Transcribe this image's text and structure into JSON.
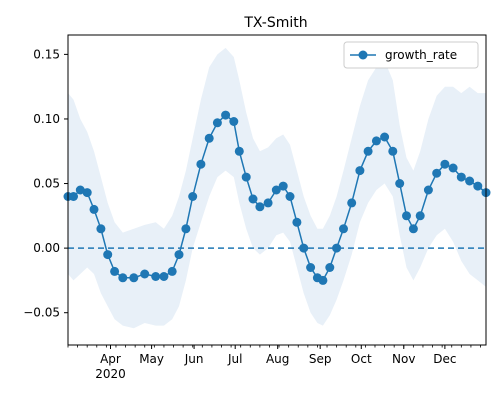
{
  "chart_data": {
    "type": "line",
    "title": "TX-Smith",
    "xlabel": "",
    "ylabel": "",
    "x_range": [
      "2020-03-01",
      "2020-12-31"
    ],
    "ylim": [
      -0.075,
      0.165
    ],
    "y_ticks": [
      -0.05,
      0.0,
      0.05,
      0.1,
      0.15
    ],
    "y_tick_labels": [
      "−0.05",
      "0.00",
      "0.05",
      "0.10",
      "0.15"
    ],
    "x_ticks": [
      {
        "date": "2020-04-01",
        "label": "Apr",
        "sublabel": "2020"
      },
      {
        "date": "2020-05-01",
        "label": "May",
        "sublabel": ""
      },
      {
        "date": "2020-06-01",
        "label": "Jun",
        "sublabel": ""
      },
      {
        "date": "2020-07-01",
        "label": "Jul",
        "sublabel": ""
      },
      {
        "date": "2020-08-01",
        "label": "Aug",
        "sublabel": ""
      },
      {
        "date": "2020-09-01",
        "label": "Sep",
        "sublabel": ""
      },
      {
        "date": "2020-10-01",
        "label": "Oct",
        "sublabel": ""
      },
      {
        "date": "2020-11-01",
        "label": "Nov",
        "sublabel": ""
      },
      {
        "date": "2020-12-01",
        "label": "Dec",
        "sublabel": ""
      }
    ],
    "minor_ticks": "weekly",
    "reference_line": {
      "y": 0.0,
      "style": "dashed",
      "color": "#1f77b4"
    },
    "legend": {
      "position": "top-right",
      "entries": [
        "growth_rate"
      ]
    },
    "grid": false,
    "series": [
      {
        "name": "growth_rate",
        "color": "#1f77b4",
        "marker": "circle",
        "band_color": "#e8f0f8",
        "points": [
          {
            "x": "2020-03-01",
            "y": 0.04,
            "lo": -0.02,
            "hi": 0.12
          },
          {
            "x": "2020-03-05",
            "y": 0.04,
            "lo": -0.025,
            "hi": 0.115
          },
          {
            "x": "2020-03-10",
            "y": 0.045,
            "lo": -0.02,
            "hi": 0.1
          },
          {
            "x": "2020-03-15",
            "y": 0.043,
            "lo": -0.015,
            "hi": 0.09
          },
          {
            "x": "2020-03-20",
            "y": 0.03,
            "lo": -0.02,
            "hi": 0.075
          },
          {
            "x": "2020-03-25",
            "y": 0.015,
            "lo": -0.035,
            "hi": 0.055
          },
          {
            "x": "2020-03-30",
            "y": -0.005,
            "lo": -0.045,
            "hi": 0.035
          },
          {
            "x": "2020-04-04",
            "y": -0.018,
            "lo": -0.055,
            "hi": 0.02
          },
          {
            "x": "2020-04-10",
            "y": -0.023,
            "lo": -0.06,
            "hi": 0.012
          },
          {
            "x": "2020-04-18",
            "y": -0.023,
            "lo": -0.062,
            "hi": 0.015
          },
          {
            "x": "2020-04-26",
            "y": -0.02,
            "lo": -0.058,
            "hi": 0.018
          },
          {
            "x": "2020-05-04",
            "y": -0.022,
            "lo": -0.06,
            "hi": 0.02
          },
          {
            "x": "2020-05-10",
            "y": -0.022,
            "lo": -0.06,
            "hi": 0.015
          },
          {
            "x": "2020-05-16",
            "y": -0.018,
            "lo": -0.055,
            "hi": 0.025
          },
          {
            "x": "2020-05-21",
            "y": -0.005,
            "lo": -0.045,
            "hi": 0.04
          },
          {
            "x": "2020-05-26",
            "y": 0.015,
            "lo": -0.025,
            "hi": 0.06
          },
          {
            "x": "2020-05-31",
            "y": 0.04,
            "lo": 0.0,
            "hi": 0.085
          },
          {
            "x": "2020-06-06",
            "y": 0.065,
            "lo": 0.02,
            "hi": 0.115
          },
          {
            "x": "2020-06-12",
            "y": 0.085,
            "lo": 0.04,
            "hi": 0.14
          },
          {
            "x": "2020-06-18",
            "y": 0.097,
            "lo": 0.055,
            "hi": 0.15
          },
          {
            "x": "2020-06-24",
            "y": 0.103,
            "lo": 0.06,
            "hi": 0.155
          },
          {
            "x": "2020-06-30",
            "y": 0.098,
            "lo": 0.055,
            "hi": 0.148
          },
          {
            "x": "2020-07-04",
            "y": 0.075,
            "lo": 0.035,
            "hi": 0.13
          },
          {
            "x": "2020-07-09",
            "y": 0.055,
            "lo": 0.015,
            "hi": 0.105
          },
          {
            "x": "2020-07-14",
            "y": 0.038,
            "lo": 0.0,
            "hi": 0.085
          },
          {
            "x": "2020-07-19",
            "y": 0.032,
            "lo": -0.005,
            "hi": 0.075
          },
          {
            "x": "2020-07-25",
            "y": 0.035,
            "lo": 0.0,
            "hi": 0.078
          },
          {
            "x": "2020-07-31",
            "y": 0.045,
            "lo": 0.01,
            "hi": 0.085
          },
          {
            "x": "2020-08-05",
            "y": 0.048,
            "lo": 0.012,
            "hi": 0.088
          },
          {
            "x": "2020-08-10",
            "y": 0.04,
            "lo": 0.005,
            "hi": 0.08
          },
          {
            "x": "2020-08-15",
            "y": 0.02,
            "lo": -0.015,
            "hi": 0.06
          },
          {
            "x": "2020-08-20",
            "y": 0.0,
            "lo": -0.035,
            "hi": 0.04
          },
          {
            "x": "2020-08-25",
            "y": -0.015,
            "lo": -0.05,
            "hi": 0.025
          },
          {
            "x": "2020-08-30",
            "y": -0.023,
            "lo": -0.058,
            "hi": 0.015
          },
          {
            "x": "2020-09-03",
            "y": -0.025,
            "lo": -0.06,
            "hi": 0.015
          },
          {
            "x": "2020-09-08",
            "y": -0.015,
            "lo": -0.052,
            "hi": 0.025
          },
          {
            "x": "2020-09-13",
            "y": 0.0,
            "lo": -0.04,
            "hi": 0.04
          },
          {
            "x": "2020-09-18",
            "y": 0.015,
            "lo": -0.025,
            "hi": 0.06
          },
          {
            "x": "2020-09-24",
            "y": 0.035,
            "lo": -0.005,
            "hi": 0.085
          },
          {
            "x": "2020-09-30",
            "y": 0.06,
            "lo": 0.02,
            "hi": 0.11
          },
          {
            "x": "2020-10-06",
            "y": 0.075,
            "lo": 0.035,
            "hi": 0.13
          },
          {
            "x": "2020-10-12",
            "y": 0.083,
            "lo": 0.045,
            "hi": 0.14
          },
          {
            "x": "2020-10-18",
            "y": 0.086,
            "lo": 0.05,
            "hi": 0.145
          },
          {
            "x": "2020-10-24",
            "y": 0.075,
            "lo": 0.04,
            "hi": 0.13
          },
          {
            "x": "2020-10-29",
            "y": 0.05,
            "lo": 0.01,
            "hi": 0.095
          },
          {
            "x": "2020-11-03",
            "y": 0.025,
            "lo": -0.015,
            "hi": 0.07
          },
          {
            "x": "2020-11-08",
            "y": 0.015,
            "lo": -0.025,
            "hi": 0.06
          },
          {
            "x": "2020-11-13",
            "y": 0.025,
            "lo": -0.015,
            "hi": 0.075
          },
          {
            "x": "2020-11-19",
            "y": 0.045,
            "lo": 0.0,
            "hi": 0.1
          },
          {
            "x": "2020-11-25",
            "y": 0.058,
            "lo": 0.01,
            "hi": 0.118
          },
          {
            "x": "2020-12-01",
            "y": 0.065,
            "lo": 0.015,
            "hi": 0.125
          },
          {
            "x": "2020-12-07",
            "y": 0.062,
            "lo": 0.005,
            "hi": 0.125
          },
          {
            "x": "2020-12-13",
            "y": 0.055,
            "lo": -0.01,
            "hi": 0.12
          },
          {
            "x": "2020-12-19",
            "y": 0.052,
            "lo": -0.02,
            "hi": 0.125
          },
          {
            "x": "2020-12-25",
            "y": 0.048,
            "lo": -0.025,
            "hi": 0.12
          },
          {
            "x": "2020-12-31",
            "y": 0.043,
            "lo": -0.03,
            "hi": 0.12
          }
        ]
      }
    ]
  }
}
